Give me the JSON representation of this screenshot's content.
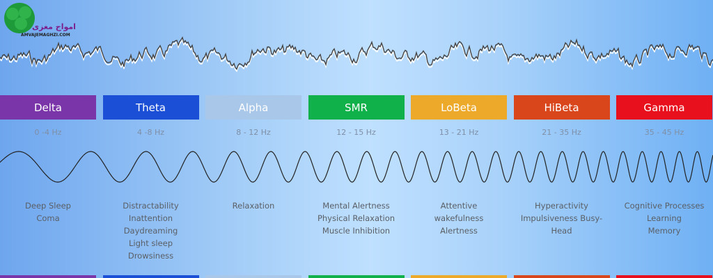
{
  "logo": {
    "title": "امواج مغزی",
    "site": "AMVAJEMAGHZI.COM"
  },
  "bands": [
    {
      "name": "Delta",
      "range": "0 -4 Hz",
      "color": "#7a35a8",
      "descriptions": [
        "Deep Sleep",
        "Coma"
      ]
    },
    {
      "name": "Theta",
      "range": "4 -8 Hz",
      "color": "#1a4fd6",
      "descriptions": [
        "Distractability",
        "Inattention",
        "Daydreaming",
        "Light sleep",
        "Drowsiness"
      ]
    },
    {
      "name": "Alpha",
      "range": "8 - 12 Hz",
      "color": "#a9c7e8",
      "descriptions": [
        "Relaxation"
      ]
    },
    {
      "name": "SMR",
      "range": "12 - 15 Hz",
      "color": "#10b04a",
      "descriptions": [
        "Mental Alertness",
        "Physical Relaxation",
        "Muscle Inhibition"
      ]
    },
    {
      "name": "LoBeta",
      "range": "13 - 21 Hz",
      "color": "#eda92a",
      "descriptions": [
        "Attentive wakefulness",
        "Alertness"
      ]
    },
    {
      "name": "HiBeta",
      "range": "21 - 35 Hz",
      "color": "#d9461c",
      "descriptions": [
        "Hyperactivity",
        "Impulsiveness Busy-Head"
      ]
    },
    {
      "name": "Gamma",
      "range": "35 - 45 Hz",
      "color": "#e8101c",
      "descriptions": [
        "Cognitive Processes",
        "Learning",
        "Memory"
      ]
    }
  ]
}
